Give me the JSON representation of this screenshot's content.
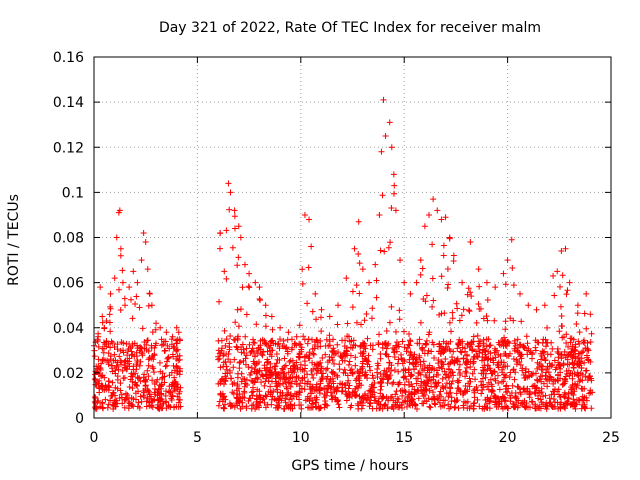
{
  "chart_data": {
    "type": "scatter",
    "title": "Day 321 of 2022, Rate Of TEC Index for receiver malm",
    "xlabel": "GPS time / hours",
    "ylabel": "ROTI / TECUs",
    "xlim": [
      0,
      25
    ],
    "ylim": [
      0,
      0.16
    ],
    "xticks": [
      0,
      5,
      10,
      15,
      20,
      25
    ],
    "xtick_labels": [
      "0",
      "5",
      "10",
      "15",
      "20",
      "25"
    ],
    "yticks": [
      0,
      0.02,
      0.04,
      0.06,
      0.08,
      0.1,
      0.12,
      0.14,
      0.16
    ],
    "ytick_labels": [
      "0",
      "0.02",
      "0.04",
      "0.06",
      "0.08",
      "0.1",
      "0.12",
      "0.14",
      "0.16"
    ],
    "grid": true,
    "marker": "+",
    "marker_color": "#ff0000",
    "data_gap_hours": [
      4.2,
      6.0
    ],
    "series": [
      {
        "x": [
          0.0,
          0.2,
          0.3,
          0.4,
          0.5,
          0.6,
          0.8,
          1.0,
          1.1,
          1.2,
          1.25,
          1.3,
          1.4,
          1.5,
          1.7,
          1.9,
          2.1,
          2.3,
          2.4,
          2.5,
          2.6,
          2.7,
          2.8,
          3.0,
          3.2,
          3.5,
          3.8,
          4.0,
          4.1,
          6.1,
          6.3,
          6.5,
          6.6,
          6.8,
          7.0,
          7.1,
          7.3,
          7.5,
          7.8,
          8.0,
          8.3,
          8.6,
          9.0,
          9.4,
          9.8,
          10.2,
          10.4,
          10.5,
          10.7,
          11.0,
          11.4,
          11.8,
          12.2,
          12.6,
          12.8,
          13.0,
          13.3,
          13.6,
          13.8,
          13.9,
          14.0,
          14.1,
          14.3,
          14.4,
          14.5,
          14.6,
          14.8,
          15.0,
          15.3,
          15.6,
          15.8,
          16.0,
          16.2,
          16.4,
          16.6,
          16.8,
          17.0,
          17.2,
          17.4,
          17.8,
          18.2,
          18.6,
          19.0,
          19.4,
          19.8,
          20.0,
          20.2,
          20.6,
          21.0,
          21.4,
          21.8,
          22.2,
          22.4,
          22.6,
          22.8,
          23.0,
          23.4,
          23.8,
          24.0
        ],
        "y": [
          0.032,
          0.036,
          0.058,
          0.045,
          0.04,
          0.043,
          0.055,
          0.062,
          0.08,
          0.091,
          0.092,
          0.075,
          0.06,
          0.05,
          0.058,
          0.065,
          0.06,
          0.07,
          0.082,
          0.078,
          0.066,
          0.055,
          0.05,
          0.042,
          0.04,
          0.038,
          0.036,
          0.04,
          0.038,
          0.082,
          0.065,
          0.104,
          0.1,
          0.092,
          0.085,
          0.08,
          0.068,
          0.064,
          0.06,
          0.058,
          0.05,
          0.045,
          0.04,
          0.038,
          0.036,
          0.09,
          0.088,
          0.076,
          0.055,
          0.048,
          0.045,
          0.05,
          0.062,
          0.075,
          0.087,
          0.066,
          0.06,
          0.068,
          0.09,
          0.118,
          0.141,
          0.125,
          0.131,
          0.12,
          0.108,
          0.092,
          0.07,
          0.06,
          0.055,
          0.06,
          0.07,
          0.085,
          0.09,
          0.097,
          0.092,
          0.088,
          0.089,
          0.08,
          0.072,
          0.06,
          0.078,
          0.066,
          0.06,
          0.058,
          0.064,
          0.07,
          0.079,
          0.055,
          0.05,
          0.048,
          0.05,
          0.063,
          0.065,
          0.074,
          0.075,
          0.06,
          0.05,
          0.055,
          0.046
        ],
        "baseline_min": 0.004,
        "baseline_max": 0.035
      }
    ]
  }
}
